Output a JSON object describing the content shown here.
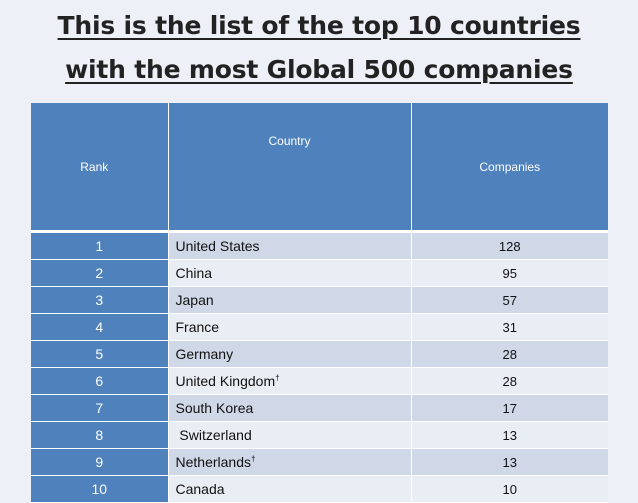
{
  "title": {
    "line1": "This is the list of the top 10 countries",
    "line2": "with the most Global 500 companies"
  },
  "table": {
    "headers": {
      "rank": "Rank",
      "country": "Country",
      "companies": "Companies"
    },
    "rows": [
      {
        "rank": "1",
        "country": "United States",
        "mark": "",
        "companies": "128"
      },
      {
        "rank": "2",
        "country": "China",
        "mark": "",
        "companies": "95"
      },
      {
        "rank": "3",
        "country": "Japan",
        "mark": "",
        "companies": "57"
      },
      {
        "rank": "4",
        "country": "France",
        "mark": "",
        "companies": "31"
      },
      {
        "rank": "5",
        "country": "Germany",
        "mark": "",
        "companies": "28"
      },
      {
        "rank": "6",
        "country": "United Kingdom",
        "mark": "†",
        "companies": "28"
      },
      {
        "rank": "7",
        "country": "South Korea",
        "mark": "",
        "companies": "17"
      },
      {
        "rank": "8",
        "country": " Switzerland",
        "mark": "",
        "companies": "13"
      },
      {
        "rank": "9",
        "country": "Netherlands",
        "mark": "†",
        "companies": "13"
      },
      {
        "rank": "10",
        "country": "Canada",
        "mark": "",
        "companies": "10"
      }
    ]
  },
  "colors": {
    "header": "#4f81bd",
    "row_odd": "#d0d8e8",
    "row_even": "#e9edf4",
    "background": "#eef0f7"
  }
}
